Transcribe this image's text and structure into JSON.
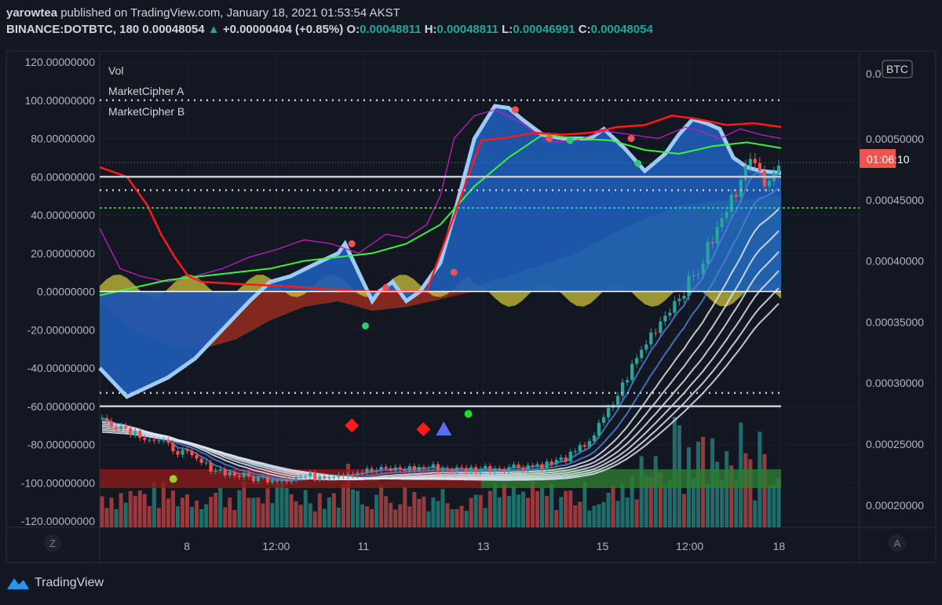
{
  "header": {
    "publisher": "yarowtea",
    "published_text": "published on TradingView.com, January 18, 2021 01:53:54 AKST",
    "symbol": "BINANCE:DOTBTC, 180",
    "price": "0.00048054",
    "change_arrow": "▲",
    "change": "+0.00000404 (+0.85%)",
    "o_label": "O:",
    "o_value": "0.00048811",
    "h_label": "H:",
    "h_value": "0.00048811",
    "l_label": "L:",
    "l_value": "0.00046991",
    "c_label": "C:",
    "c_value": "0.00048054"
  },
  "footer": {
    "brand": "TradingView"
  },
  "colors": {
    "background": "#131722",
    "up": "#26a69a",
    "down": "#ef5350",
    "wave_blue": "#1e5bb5",
    "wave_light": "#9ecbf5",
    "money_green": "#4cc24c",
    "money_red": "#8b1a1a",
    "money_yellow": "#c9c23a",
    "rsi_magenta": "#c21dc2",
    "mfi_green": "#3df23d",
    "red_line": "#ff1a1a"
  },
  "chart_data": {
    "type": "candlestick",
    "symbol": "DOTBTC",
    "quote_currency": "BTC",
    "countdown_label": "01:06:10",
    "current_price": 0.00048054,
    "price_ylim": [
      0.0001758,
      0.0005275
    ],
    "oscillator_ylim": [
      -125,
      125
    ],
    "left_axis_ticks": [
      "120.00000000",
      "100.00000000",
      "80.00000000",
      "60.00000000",
      "40.00000000",
      "20.00000000",
      "0.00000000",
      "-20.00000000",
      "-40.00000000",
      "-60.00000000",
      "-80.00000000",
      "-100.00000000",
      "-120.00000000"
    ],
    "left_axis_values": [
      120,
      100,
      80,
      60,
      40,
      20,
      0,
      -20,
      -40,
      -60,
      -80,
      -100,
      -120
    ],
    "right_axis_ticks": [
      "0.00050000",
      "0.00045000",
      "0.00040000",
      "0.00035000",
      "0.00030000",
      "0.00025000",
      "0.00020000"
    ],
    "right_axis_values": [
      0.0005,
      0.00045,
      0.0004,
      0.00035,
      0.0003,
      0.00025,
      0.0002
    ],
    "right_axis_top_partial": "0.0",
    "x_ticks": [
      "8",
      "12:00",
      "11",
      "13",
      "15",
      "12:00",
      "18"
    ],
    "x_tick_positions": [
      0.128,
      0.259,
      0.387,
      0.563,
      0.738,
      0.866,
      0.997
    ],
    "legend": [
      "Vol",
      "MarketCipher A",
      "MarketCipher B"
    ],
    "horizontal_levels": [
      {
        "value": 100,
        "style": "dotted"
      },
      {
        "value": 60,
        "style": "solid"
      },
      {
        "value": 53,
        "style": "dotted"
      },
      {
        "value": -53,
        "style": "dotted"
      },
      {
        "value": -60,
        "style": "solid"
      }
    ],
    "corner_labels": {
      "left": "Z",
      "right": "A"
    },
    "candles": {
      "count": 144,
      "close_path": [
        [
          0,
          0.00027
        ],
        [
          4,
          0.000265
        ],
        [
          10,
          0.000255
        ],
        [
          16,
          0.000245
        ],
        [
          22,
          0.000232
        ],
        [
          28,
          0.000225
        ],
        [
          32,
          0.000222
        ],
        [
          40,
          0.000222
        ],
        [
          50,
          0.000226
        ],
        [
          60,
          0.000229
        ],
        [
          70,
          0.000231
        ],
        [
          75,
          0.000229
        ],
        [
          80,
          0.00023
        ],
        [
          88,
          0.000232
        ],
        [
          95,
          0.000234
        ],
        [
          100,
          0.000242
        ],
        [
          104,
          0.000258
        ],
        [
          108,
          0.000283
        ],
        [
          112,
          0.000313
        ],
        [
          116,
          0.00034
        ],
        [
          120,
          0.000362
        ],
        [
          126,
          0.000392
        ],
        [
          128,
          0.00041
        ],
        [
          130,
          0.000425
        ],
        [
          134,
          0.000458
        ],
        [
          136,
          0.000485
        ],
        [
          138,
          0.000475
        ],
        [
          140,
          0.000468
        ],
        [
          143,
          0.000481
        ]
      ]
    },
    "oscillator": {
      "wave_x": [
        0,
        0.04,
        0.07,
        0.1,
        0.14,
        0.18,
        0.22,
        0.25,
        0.28,
        0.32,
        0.35,
        0.36,
        0.38,
        0.4,
        0.41,
        0.43,
        0.45,
        0.47,
        0.49,
        0.5,
        0.52,
        0.55,
        0.58,
        0.6,
        0.62,
        0.65,
        0.68,
        0.72,
        0.74,
        0.77,
        0.8,
        0.83,
        0.85,
        0.87,
        0.89,
        0.91,
        0.93,
        0.95,
        0.97,
        1.0
      ],
      "wave_y": [
        -40,
        -55,
        -50,
        -45,
        -35,
        -20,
        -5,
        5,
        8,
        15,
        20,
        25,
        10,
        -5,
        0,
        5,
        -5,
        0,
        10,
        15,
        40,
        80,
        97,
        96,
        90,
        82,
        80,
        80,
        85,
        75,
        63,
        72,
        82,
        90,
        88,
        85,
        70,
        65,
        63,
        62
      ],
      "money_flow_x": [
        0,
        0.05,
        0.1,
        0.15,
        0.2,
        0.25,
        0.3,
        0.35,
        0.4,
        0.45,
        0.5,
        0.55,
        0.6,
        0.65,
        0.7,
        0.75,
        0.8,
        0.85,
        0.9,
        0.95,
        1.0
      ],
      "money_flow_y": [
        -5,
        -20,
        -28,
        -30,
        -25,
        -15,
        -8,
        -5,
        -10,
        -8,
        -4,
        3,
        8,
        14,
        20,
        30,
        38,
        45,
        47,
        48,
        50
      ],
      "rsi_x": [
        0,
        0.03,
        0.06,
        0.1,
        0.14,
        0.18,
        0.22,
        0.26,
        0.3,
        0.34,
        0.38,
        0.42,
        0.45,
        0.48,
        0.5,
        0.52,
        0.55,
        0.58,
        0.62,
        0.66,
        0.7,
        0.74,
        0.78,
        0.82,
        0.86,
        0.88,
        0.91,
        0.94,
        0.97,
        1.0
      ],
      "rsi_y": [
        33,
        12,
        8,
        5,
        8,
        12,
        18,
        22,
        27,
        25,
        20,
        30,
        28,
        35,
        50,
        80,
        92,
        95,
        88,
        78,
        79,
        84,
        82,
        80,
        86,
        84,
        80,
        85,
        82,
        80
      ],
      "mfi_x": [
        0,
        0.05,
        0.1,
        0.15,
        0.2,
        0.25,
        0.3,
        0.35,
        0.4,
        0.45,
        0.5,
        0.55,
        0.6,
        0.65,
        0.7,
        0.75,
        0.8,
        0.85,
        0.9,
        0.95,
        1.0
      ],
      "mfi_y": [
        -2,
        2,
        6,
        8,
        10,
        12,
        16,
        18,
        20,
        25,
        35,
        55,
        70,
        82,
        80,
        79,
        74,
        72,
        76,
        78,
        75
      ],
      "red_line_x": [
        0,
        0.04,
        0.07,
        0.09,
        0.11,
        0.13,
        0.15,
        0.2,
        0.26,
        0.31,
        0.35,
        0.4,
        0.44,
        0.48,
        0.56,
        0.59,
        0.64,
        0.68,
        0.72,
        0.76,
        0.8,
        0.84,
        0.88,
        0.92,
        0.96,
        1.0
      ],
      "red_line_y": [
        65,
        60,
        45,
        30,
        18,
        8,
        5,
        4,
        3,
        2,
        1,
        0,
        0,
        0,
        79,
        80,
        83,
        82,
        83,
        86,
        87,
        92,
        90,
        87,
        88,
        86
      ]
    }
  }
}
